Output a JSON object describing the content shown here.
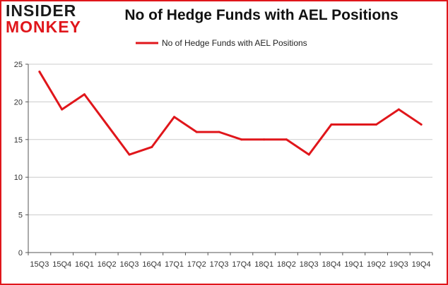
{
  "logo": {
    "line1": "INSIDER",
    "line2": "MONKEY"
  },
  "colors": {
    "series": "#e0161b",
    "grid": "#cccccc",
    "frame": "#e0161b"
  },
  "chart_data": {
    "type": "line",
    "title": "No of Hedge Funds with AEL Positions",
    "xlabel": "",
    "ylabel": "",
    "ylim": [
      0,
      25
    ],
    "yticks": [
      0,
      5,
      10,
      15,
      20,
      25
    ],
    "grid": true,
    "legend_position": "top-center",
    "categories": [
      "15Q3",
      "15Q4",
      "16Q1",
      "16Q2",
      "16Q3",
      "16Q4",
      "17Q1",
      "17Q2",
      "17Q3",
      "17Q4",
      "18Q1",
      "18Q2",
      "18Q3",
      "18Q4",
      "19Q1",
      "19Q2",
      "19Q3",
      "19Q4"
    ],
    "series": [
      {
        "name": "No of Hedge Funds with AEL Positions",
        "values": [
          24,
          19,
          21,
          17,
          13,
          14,
          18,
          16,
          16,
          15,
          15,
          15,
          13,
          17,
          17,
          17,
          19,
          17
        ]
      }
    ]
  }
}
